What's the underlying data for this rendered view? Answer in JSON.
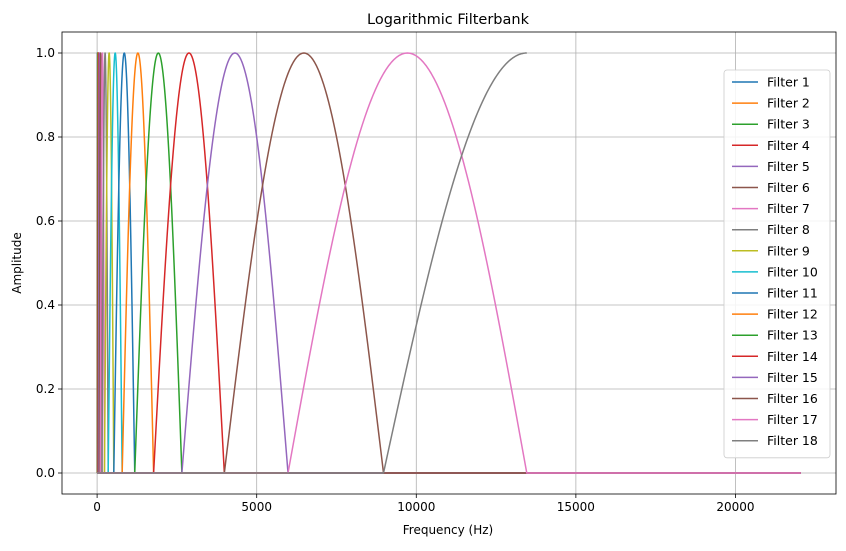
{
  "chart_data": {
    "type": "line",
    "title": "Logarithmic Filterbank",
    "xlabel": "Frequency (Hz)",
    "ylabel": "Amplitude",
    "xlim": [
      -1100,
      23150
    ],
    "ylim": [
      -0.05,
      1.05
    ],
    "x_ticks": [
      0,
      5000,
      10000,
      15000,
      20000
    ],
    "x_tick_labels": [
      "0",
      "5000",
      "10000",
      "15000",
      "20000"
    ],
    "y_ticks": [
      0.0,
      0.2,
      0.4,
      0.6,
      0.8,
      1.0
    ],
    "y_tick_labels": [
      "0.0",
      "0.2",
      "0.4",
      "0.6",
      "0.8",
      "1.0"
    ],
    "grid": true,
    "legend_position": "right",
    "nyquist_hz": 22050,
    "frequency_edges_hz": [
      0,
      8,
      16,
      27,
      43,
      66,
      101,
      153,
      231,
      347,
      523,
      785,
      1179,
      1770,
      2656,
      3986,
      5981,
      8973,
      13462,
      22050
    ],
    "colors": [
      "#1f77b4",
      "#ff7f0e",
      "#2ca02c",
      "#d62728",
      "#9467bd",
      "#8c564b",
      "#e377c2",
      "#7f7f7f",
      "#bcbd22",
      "#17becf"
    ],
    "series": [
      {
        "name": "Filter 1"
      },
      {
        "name": "Filter 2"
      },
      {
        "name": "Filter 3"
      },
      {
        "name": "Filter 4"
      },
      {
        "name": "Filter 5"
      },
      {
        "name": "Filter 6"
      },
      {
        "name": "Filter 7"
      },
      {
        "name": "Filter 8"
      },
      {
        "name": "Filter 9"
      },
      {
        "name": "Filter 10"
      },
      {
        "name": "Filter 11"
      },
      {
        "name": "Filter 12"
      },
      {
        "name": "Filter 13"
      },
      {
        "name": "Filter 14"
      },
      {
        "name": "Filter 15"
      },
      {
        "name": "Filter 16"
      },
      {
        "name": "Filter 17"
      },
      {
        "name": "Filter 18"
      }
    ]
  }
}
